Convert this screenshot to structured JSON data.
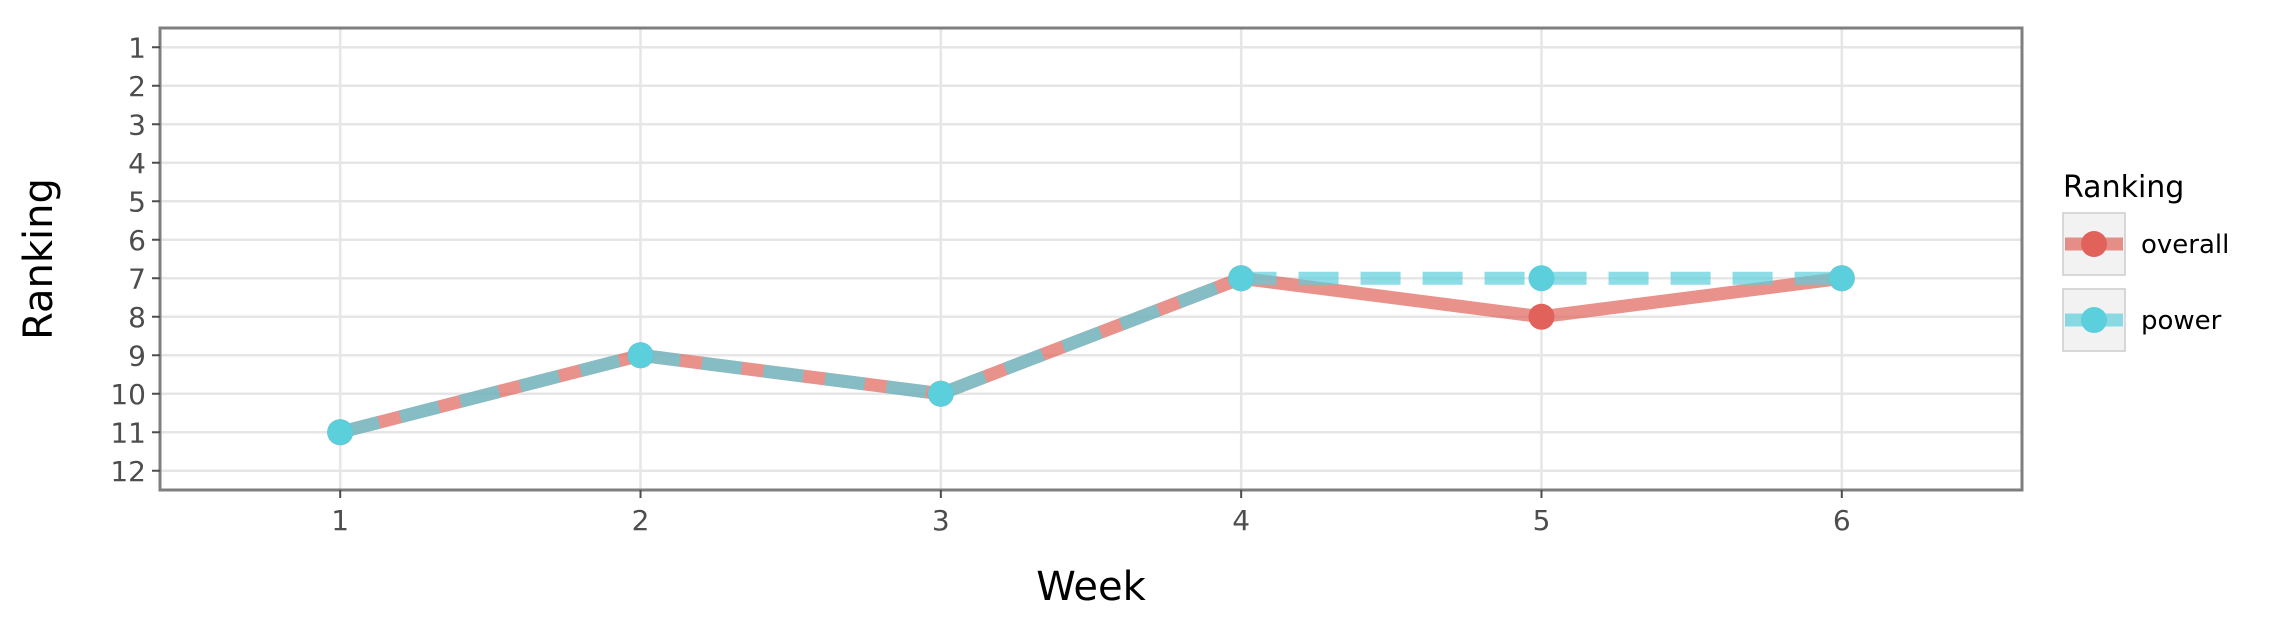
{
  "chart_data": {
    "type": "line",
    "xlabel": "Week",
    "ylabel": "Ranking",
    "x": [
      1,
      2,
      3,
      4,
      5,
      6
    ],
    "xlim": [
      0.4,
      6.6
    ],
    "ylim": [
      12.5,
      0.5
    ],
    "y_reversed": true,
    "x_ticks": [
      1,
      2,
      3,
      4,
      5,
      6
    ],
    "y_ticks": [
      1,
      2,
      3,
      4,
      5,
      6,
      7,
      8,
      9,
      10,
      11,
      12
    ],
    "grid": true,
    "legend": {
      "title": "Ranking",
      "placement": "right"
    },
    "series": [
      {
        "name": "overall",
        "color": "#E0625A",
        "linestyle": "solid",
        "values": [
          11,
          9,
          10,
          7,
          8,
          7
        ]
      },
      {
        "name": "power",
        "color": "#5BCFDC",
        "linestyle": "dashed",
        "values": [
          11,
          9,
          10,
          7,
          7,
          7
        ]
      }
    ]
  }
}
